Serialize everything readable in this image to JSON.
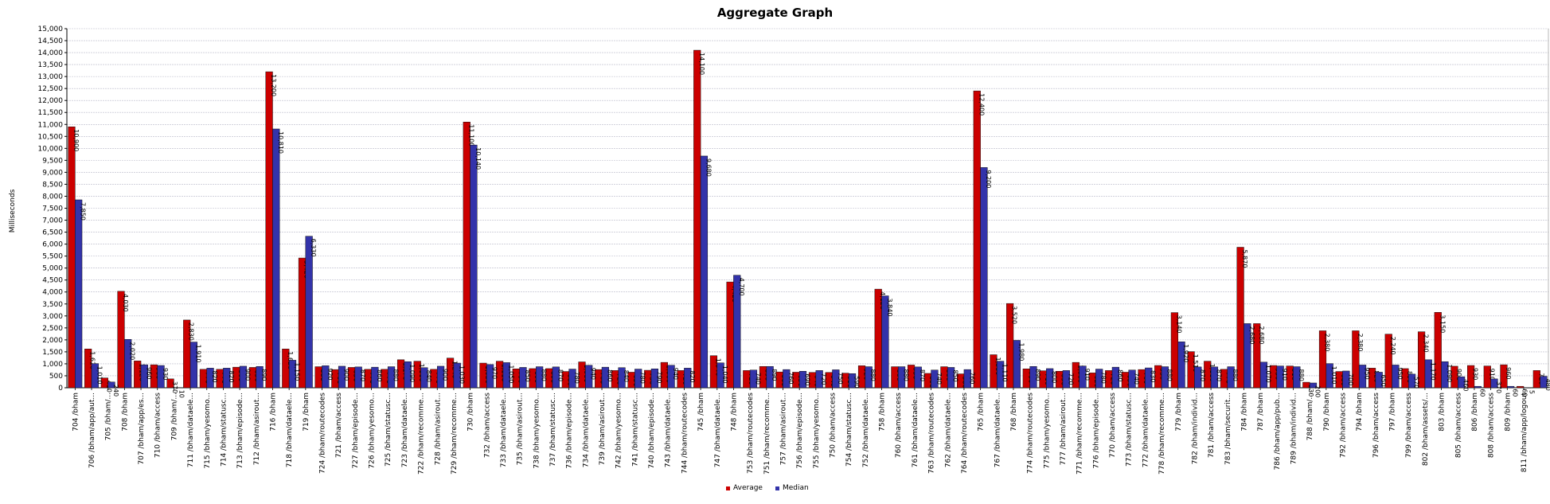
{
  "chart_data": {
    "type": "bar",
    "title": "Aggregate Graph",
    "xlabel": "",
    "ylabel": "Milliseconds",
    "ylim": [
      0,
      15000
    ],
    "ytick_step": 500,
    "grid": true,
    "legend_position": "bottom-center",
    "categories": [
      "704 /bham",
      "706 /bham/app/aut...",
      "705 /bham/...",
      "708 /bham",
      "707 /bham/app/es...",
      "710 /bham/access",
      "709 /bham/...",
      "711 /bham/dataele...",
      "715 /bham/yesomo...",
      "714 /bham/statusc...",
      "713 /bham/episode...",
      "712 /bham/asirout...",
      "716 /bham",
      "718 /bham/dataele...",
      "719 /bham",
      "724 /bham/routecodes",
      "721 /bham/access",
      "727 /bham/episode...",
      "726 /bham/yesomo...",
      "725 /bham/statusc...",
      "723 /bham/dataele...",
      "722 /bham/recomme...",
      "728 /bham/asirout...",
      "729 /bham/recomme...",
      "730 /bham",
      "732 /bham/access",
      "733 /bham/dataele...",
      "735 /bham/asirout...",
      "738 /bham/yesomo...",
      "737 /bham/statusc...",
      "736 /bham/episode...",
      "734 /bham/dataele...",
      "739 /bham/asirout...",
      "742 /bham/yesomo...",
      "741 /bham/statusc...",
      "740 /bham/episode...",
      "743 /bham/dataele...",
      "744 /bham/routecodes",
      "745 /bham",
      "747 /bham/dataele...",
      "748 /bham",
      "753 /bham/routecodes",
      "751 /bham/recomme...",
      "757 /bham/asirout...",
      "756 /bham/episode...",
      "755 /bham/yesomo...",
      "750 /bham/access",
      "754 /bham/statusc...",
      "752 /bham/dataele...",
      "758 /bham",
      "760 /bham/access",
      "761 /bham/dataele...",
      "763 /bham/routecodes",
      "762 /bham/dataele...",
      "764 /bham/routecodes",
      "765 /bham",
      "767 /bham/dataele...",
      "768 /bham",
      "774 /bham/routecodes",
      "775 /bham/yesomo...",
      "777 /bham/asirout...",
      "771 /bham/recomme...",
      "776 /bham/episode...",
      "770 /bham/access",
      "773 /bham/statusc...",
      "772 /bham/dataele...",
      "778 /bham/recomme...",
      "779 /bham",
      "782 /bham/individ...",
      "781 /bham/access",
      "783 /bham/securit...",
      "784 /bham",
      "787 /bham",
      "786 /bham/app/pub...",
      "789 /bham/individ...",
      "788 /bham/...",
      "790 /bham",
      "792 /bham/access",
      "794 /bham",
      "796 /bham/access",
      "797 /bham",
      "799 /bham/access",
      "802 /bham/assets/...",
      "803 /bham",
      "805 /bham/access",
      "806 /bham",
      "808 /bham/access",
      "809 /bham",
      "811 /bham/app/logout",
      ""
    ],
    "series": [
      {
        "name": "Average",
        "color": "#cc0000",
        "values": [
          10900,
          1620,
          410,
          4030,
          1120,
          960,
          370,
          2830,
          770,
          770,
          860,
          850,
          13200,
          1620,
          5420,
          880,
          760,
          850,
          770,
          770,
          1170,
          1110,
          770,
          1240,
          11100,
          1030,
          1110,
          790,
          800,
          800,
          680,
          1080,
          760,
          720,
          650,
          730,
          1060,
          720,
          14100,
          1340,
          4420,
          720,
          890,
          660,
          650,
          640,
          640,
          610,
          920,
          4120,
          880,
          950,
          600,
          880,
          580,
          12400,
          1380,
          3520,
          790,
          710,
          690,
          1060,
          620,
          720,
          650,
          760,
          930,
          3140,
          1510,
          1110,
          770,
          5870,
          2680,
          930,
          910,
          230,
          2380,
          680,
          2380,
          820,
          2240,
          800,
          2340,
          3150,
          900,
          930,
          910,
          960,
          60,
          720
        ]
      },
      {
        "name": "Median",
        "color": "#3333aa",
        "values": [
          7850,
          1010,
          240,
          2020,
          960,
          930,
          10,
          1910,
          820,
          820,
          900,
          890,
          10810,
          1150,
          6330,
          920,
          900,
          870,
          860,
          880,
          1090,
          840,
          900,
          1030,
          10140,
          970,
          1050,
          850,
          880,
          870,
          780,
          940,
          860,
          840,
          780,
          790,
          940,
          820,
          9680,
          1040,
          4700,
          740,
          890,
          760,
          690,
          720,
          750,
          590,
          880,
          3840,
          880,
          870,
          740,
          850,
          760,
          9200,
          1110,
          1980,
          890,
          800,
          720,
          910,
          780,
          860,
          740,
          830,
          880,
          1920,
          870,
          870,
          880,
          2680,
          1070,
          910,
          880,
          200,
          1010,
          700,
          950,
          650,
          950,
          570,
          1170,
          1090,
          460,
          60,
          370,
          60,
          5,
          480
        ]
      }
    ]
  }
}
